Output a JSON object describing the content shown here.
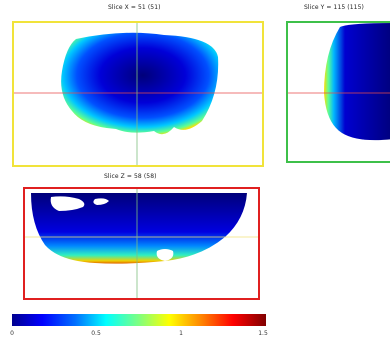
{
  "slices": {
    "x": {
      "title": "Slice X = 51 (51)",
      "border_color": "#f1e33a"
    },
    "y": {
      "title": "Slice Y = 115 (115)",
      "border_color": "#3ec04a"
    },
    "z": {
      "title": "Slice Z = 58 (58)",
      "border_color": "#e02020"
    }
  },
  "colorbar": {
    "ticks": [
      "0",
      "0.5",
      "1",
      "1.5"
    ],
    "range": [
      0,
      1.5
    ],
    "colormap": "jet"
  },
  "crosshair": {
    "horizontal_color": "#e84a4a",
    "vertical_color": "#7fbf7f"
  }
}
